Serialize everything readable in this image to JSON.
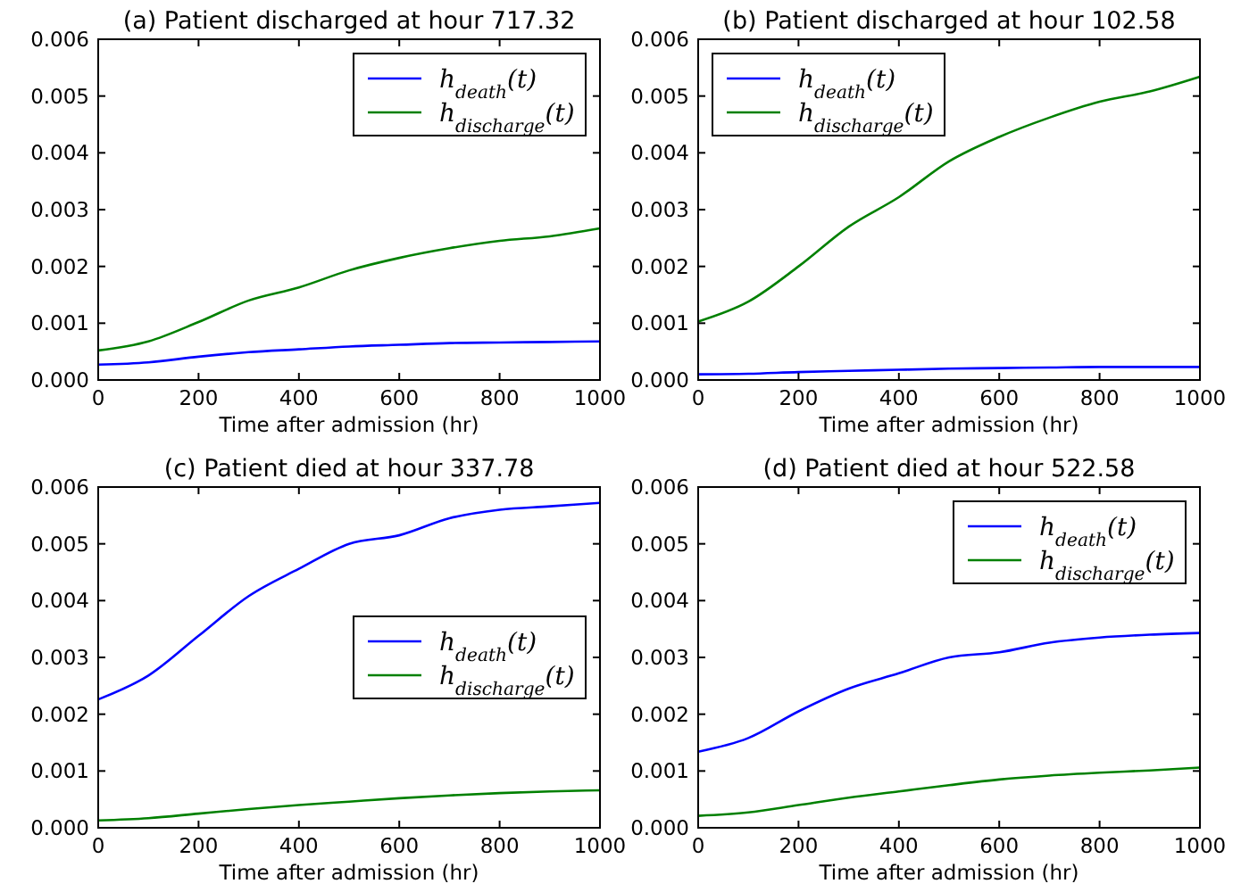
{
  "chart_data": [
    {
      "type": "line",
      "title": "(a) Patient discharged at hour 717.32",
      "xlabel": "Time after admission (hr)",
      "x": [
        0,
        100,
        200,
        300,
        400,
        500,
        600,
        700,
        800,
        900,
        1000
      ],
      "xlim": [
        0,
        1000
      ],
      "xticks": [
        0,
        200,
        400,
        600,
        800,
        1000
      ],
      "ylim": [
        0,
        0.006
      ],
      "yticks": [
        {
          "value": 0,
          "label": "0.000"
        },
        {
          "value": 0.001,
          "label": "0.001"
        },
        {
          "value": 0.002,
          "label": "0.002"
        },
        {
          "value": 0.003,
          "label": "0.003"
        },
        {
          "value": 0.004,
          "label": "0.004"
        },
        {
          "value": 0.005,
          "label": "0.005"
        },
        {
          "value": 0.006,
          "label": "0.006"
        }
      ],
      "legend": "top right",
      "grid": false,
      "series": [
        {
          "name": "h$_{death}$(t)",
          "color": "#0000ff",
          "values": [
            0.00027,
            0.00031,
            0.00041,
            0.00049,
            0.00054,
            0.00059,
            0.00062,
            0.00065,
            0.00066,
            0.00067,
            0.00068
          ]
        },
        {
          "name": "h$_{discharge}$(t)",
          "color": "#008000",
          "values": [
            0.00052,
            0.00068,
            0.00102,
            0.0014,
            0.00163,
            0.00193,
            0.00215,
            0.00232,
            0.00245,
            0.00253,
            0.00267
          ]
        }
      ]
    },
    {
      "type": "line",
      "title": "(b) Patient discharged at hour 102.58",
      "xlabel": "Time after admission (hr)",
      "x": [
        0,
        100,
        200,
        300,
        400,
        500,
        600,
        700,
        800,
        900,
        1000
      ],
      "xlim": [
        0,
        1000
      ],
      "xticks": [
        0,
        200,
        400,
        600,
        800,
        1000
      ],
      "ylim": [
        0,
        0.006
      ],
      "yticks": [
        {
          "value": 0,
          "label": "0.000"
        },
        {
          "value": 0.001,
          "label": "0.001"
        },
        {
          "value": 0.002,
          "label": "0.002"
        },
        {
          "value": 0.003,
          "label": "0.003"
        },
        {
          "value": 0.004,
          "label": "0.004"
        },
        {
          "value": 0.005,
          "label": "0.005"
        },
        {
          "value": 0.006,
          "label": "0.006"
        }
      ],
      "legend": "top left",
      "grid": false,
      "series": [
        {
          "name": "h$_{death}$(t)",
          "color": "#0000ff",
          "values": [
            0.0001,
            0.00011,
            0.00014,
            0.00016,
            0.00018,
            0.0002,
            0.00021,
            0.00022,
            0.00023,
            0.00023,
            0.00023
          ]
        },
        {
          "name": "h$_{discharge}$(t)",
          "color": "#008000",
          "values": [
            0.00103,
            0.00138,
            0.002,
            0.0027,
            0.00322,
            0.00385,
            0.00428,
            0.00462,
            0.0049,
            0.00508,
            0.00534
          ]
        }
      ]
    },
    {
      "type": "line",
      "title": "(c) Patient died at hour 337.78",
      "xlabel": "Time after admission (hr)",
      "x": [
        0,
        100,
        200,
        300,
        400,
        500,
        600,
        700,
        800,
        900,
        1000
      ],
      "xlim": [
        0,
        1000
      ],
      "xticks": [
        0,
        200,
        400,
        600,
        800,
        1000
      ],
      "ylim": [
        0,
        0.006
      ],
      "yticks": [
        {
          "value": 0,
          "label": "0.000"
        },
        {
          "value": 0.001,
          "label": "0.001"
        },
        {
          "value": 0.002,
          "label": "0.002"
        },
        {
          "value": 0.003,
          "label": "0.003"
        },
        {
          "value": 0.004,
          "label": "0.004"
        },
        {
          "value": 0.005,
          "label": "0.005"
        },
        {
          "value": 0.006,
          "label": "0.006"
        }
      ],
      "legend": "right",
      "grid": false,
      "series": [
        {
          "name": "h$_{death}$(t)",
          "color": "#0000ff",
          "values": [
            0.00226,
            0.00268,
            0.00338,
            0.00408,
            0.00456,
            0.005,
            0.00515,
            0.00545,
            0.0056,
            0.00566,
            0.00572
          ]
        },
        {
          "name": "h$_{discharge}$(t)",
          "color": "#008000",
          "values": [
            0.00013,
            0.00017,
            0.00025,
            0.00033,
            0.0004,
            0.00046,
            0.00052,
            0.00057,
            0.00061,
            0.00064,
            0.00066
          ]
        }
      ]
    },
    {
      "type": "line",
      "title": "(d) Patient died at hour 522.58",
      "xlabel": "Time after admission (hr)",
      "x": [
        0,
        100,
        200,
        300,
        400,
        500,
        600,
        700,
        800,
        900,
        1000
      ],
      "xlim": [
        0,
        1000
      ],
      "xticks": [
        0,
        200,
        400,
        600,
        800,
        1000
      ],
      "ylim": [
        0,
        0.006
      ],
      "yticks": [
        {
          "value": 0,
          "label": "0.000"
        },
        {
          "value": 0.001,
          "label": "0.001"
        },
        {
          "value": 0.002,
          "label": "0.002"
        },
        {
          "value": 0.003,
          "label": "0.003"
        },
        {
          "value": 0.004,
          "label": "0.004"
        },
        {
          "value": 0.005,
          "label": "0.005"
        },
        {
          "value": 0.006,
          "label": "0.006"
        }
      ],
      "legend": "top right",
      "grid": false,
      "series": [
        {
          "name": "h$_{death}$(t)",
          "color": "#0000ff",
          "values": [
            0.00134,
            0.00158,
            0.00205,
            0.00245,
            0.00272,
            0.003,
            0.00309,
            0.00326,
            0.00335,
            0.0034,
            0.00343
          ]
        },
        {
          "name": "h$_{discharge}$(t)",
          "color": "#008000",
          "values": [
            0.00021,
            0.00027,
            0.0004,
            0.00053,
            0.00064,
            0.00075,
            0.00085,
            0.00092,
            0.00097,
            0.00101,
            0.00106
          ]
        }
      ]
    }
  ]
}
